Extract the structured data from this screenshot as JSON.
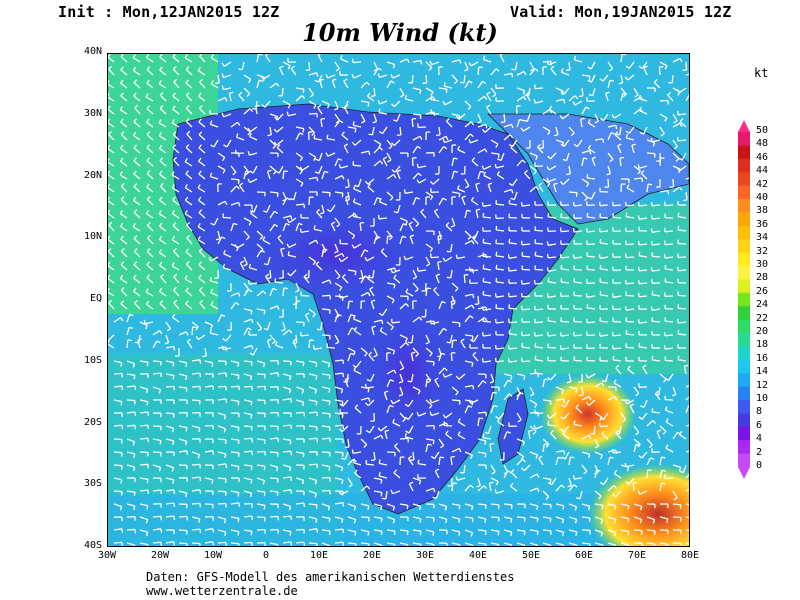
{
  "header": {
    "init": "Init : Mon,12JAN2015 12Z",
    "valid": "Valid: Mon,19JAN2015 12Z",
    "title": "10m Wind (kt)"
  },
  "unit_label": "kt",
  "map": {
    "lat_labels": [
      "40N",
      "30N",
      "20N",
      "10N",
      "EQ",
      "10S",
      "20S",
      "30S",
      "40S"
    ],
    "lon_labels": [
      "30W",
      "20W",
      "10W",
      "0",
      "10E",
      "20E",
      "30E",
      "40E",
      "50E",
      "60E",
      "70E",
      "80E"
    ],
    "colors": {
      "ocean_trade": "#3ed98a",
      "ocean_mid": "#2fb8e0",
      "land_calm": "#3a4fe0",
      "land_light": "#4f86ee",
      "storm_yellow": "#ffe034",
      "storm_orange": "#ff8c1a",
      "storm_red": "#d0342c",
      "wind_barb": "#ffffff",
      "coast": "#202020"
    }
  },
  "colorbar": {
    "levels": [
      "50",
      "48",
      "46",
      "44",
      "42",
      "40",
      "38",
      "36",
      "34",
      "32",
      "30",
      "28",
      "26",
      "24",
      "22",
      "20",
      "18",
      "16",
      "14",
      "12",
      "10",
      "8",
      "6",
      "4",
      "2",
      "0"
    ],
    "colors": [
      "#ff2d8a",
      "#e81a6e",
      "#c81414",
      "#dc2d1e",
      "#e8461e",
      "#ff6428",
      "#ff8c1e",
      "#ffa50a",
      "#ffbe0a",
      "#ffd214",
      "#ffeb1e",
      "#fff046",
      "#dcf01e",
      "#78e61e",
      "#32d23c",
      "#2ddc64",
      "#28dc96",
      "#1ed7c8",
      "#1ec8f0",
      "#1eaaf5",
      "#2882f5",
      "#3c5af0",
      "#463cdc",
      "#7814e6",
      "#aa28f0",
      "#c84bf5"
    ]
  },
  "footer": {
    "line1": "Daten: GFS-Modell des amerikanischen Wetterdienstes",
    "line2": "www.wetterzentrale.de"
  }
}
